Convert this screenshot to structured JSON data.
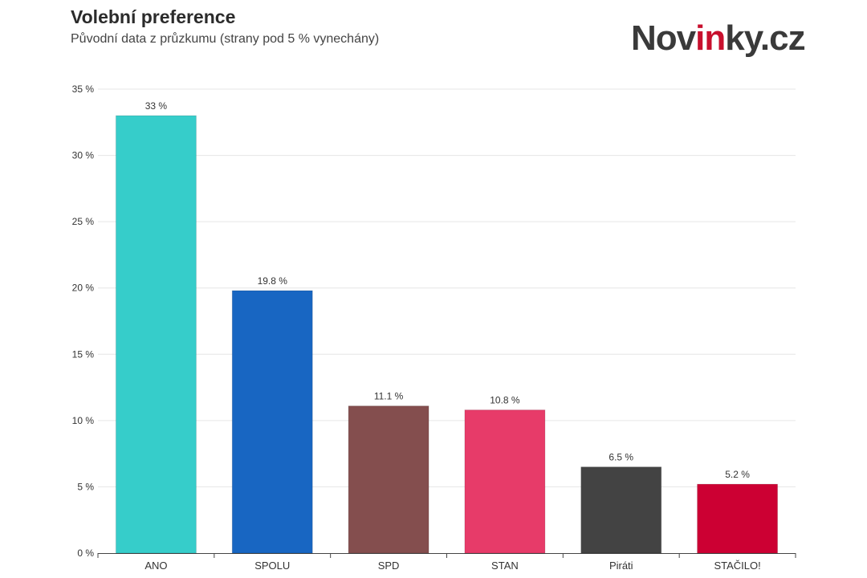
{
  "header": {
    "title": "Volební preference",
    "subtitle": "Původní data z průzkumu (strany pod 5 % vynechány)"
  },
  "logo": {
    "text_part1": "Nov",
    "text_accent": "in",
    "text_part2": "ky.cz",
    "accent_color": "#c8102e",
    "text_color": "#3a3a3a"
  },
  "chart_data": {
    "type": "bar",
    "categories": [
      "ANO",
      "SPOLU",
      "SPD",
      "STAN",
      "Piráti",
      "STAČILO!"
    ],
    "values": [
      33,
      19.8,
      11.1,
      10.8,
      6.5,
      5.2
    ],
    "value_labels": [
      "33 %",
      "19.8 %",
      "11.1 %",
      "10.8 %",
      "6.5 %",
      "5.2 %"
    ],
    "colors": [
      "#36cdca",
      "#1866c2",
      "#844e4e",
      "#e73b69",
      "#434343",
      "#cc0033"
    ],
    "ylim": [
      0,
      35
    ],
    "yticks": [
      0,
      5,
      10,
      15,
      20,
      25,
      30,
      35
    ],
    "ytick_labels": [
      "0 %",
      "5 %",
      "10 %",
      "15 %",
      "20 %",
      "25 %",
      "30 %",
      "35 %"
    ],
    "grid": true,
    "title": "Volební preference",
    "subtitle": "Původní data z průzkumu (strany pod 5 % vynechány)",
    "xlabel": "",
    "ylabel": ""
  }
}
